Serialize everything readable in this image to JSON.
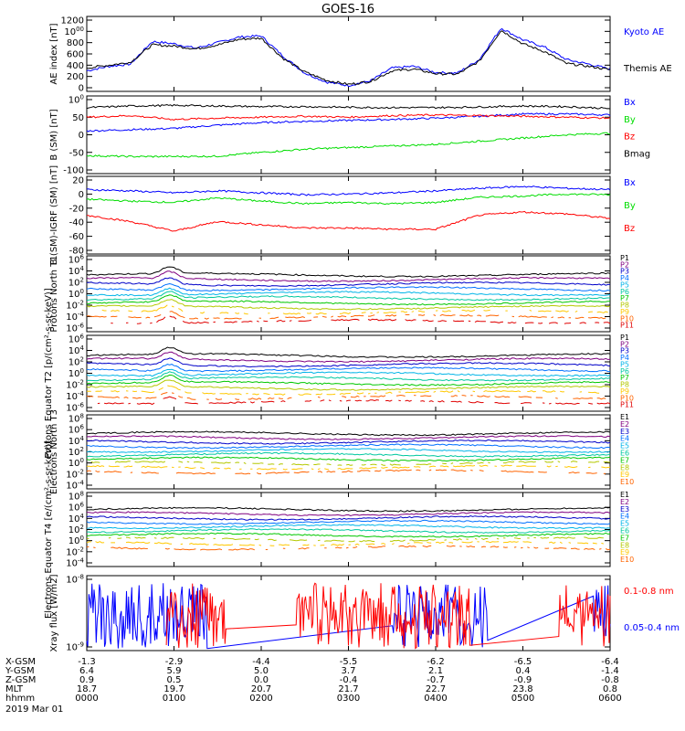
{
  "title": "GOES-16",
  "colors": {
    "black": "#000000",
    "blue": "#0000ff",
    "green": "#00dd00",
    "red": "#ff0000",
    "P": [
      "#000000",
      "#800080",
      "#0000c8",
      "#0070ff",
      "#00b4e8",
      "#00c8a0",
      "#00c800",
      "#b4c800",
      "#ffc800",
      "#ff6400",
      "#e00000"
    ],
    "E": [
      "#000000",
      "#800080",
      "#0000c8",
      "#0070ff",
      "#00b4e8",
      "#00c8a0",
      "#00c800",
      "#b4c800",
      "#ffc800",
      "#ff6400",
      "#e00000"
    ]
  },
  "chart_data": [
    {
      "type": "line",
      "id": "ae",
      "ylabel": "AE index [nT]",
      "yticks": [
        "0",
        "200",
        "400",
        "600",
        "800",
        "1000",
        "1200"
      ],
      "ylim": [
        0,
        1200
      ],
      "x": [
        0,
        0.25,
        0.5,
        0.75,
        1,
        1.25,
        1.5,
        1.75,
        2,
        2.25,
        2.5,
        2.75,
        3,
        3.25,
        3.5,
        3.75,
        4,
        4.25,
        4.5,
        4.75,
        5,
        5.25,
        5.5,
        5.75,
        6
      ],
      "series": [
        {
          "name": "Kyoto AE",
          "color": "#0000ff",
          "values": [
            300,
            380,
            420,
            820,
            780,
            700,
            800,
            900,
            920,
            560,
            260,
            100,
            40,
            120,
            350,
            380,
            270,
            260,
            500,
            1060,
            850,
            720,
            500,
            420,
            330
          ]
        },
        {
          "name": "Themis AE",
          "color": "#000000",
          "values": [
            350,
            400,
            450,
            760,
            740,
            690,
            760,
            860,
            880,
            520,
            280,
            130,
            60,
            110,
            300,
            330,
            250,
            240,
            470,
            1020,
            780,
            640,
            430,
            380,
            320
          ]
        }
      ]
    },
    {
      "type": "line",
      "id": "bgsm",
      "ylabel": "B (SM) [nT]",
      "yticks": [
        "-100",
        "-50",
        "0",
        "50",
        "100"
      ],
      "ylim": [
        -110,
        110
      ],
      "x": [
        0,
        0.5,
        1,
        1.5,
        2,
        2.5,
        3,
        3.5,
        4,
        4.5,
        5,
        5.5,
        6
      ],
      "series": [
        {
          "name": "Bx",
          "color": "#0000ff",
          "values": [
            12,
            16,
            20,
            30,
            38,
            42,
            45,
            48,
            52,
            58,
            65,
            65,
            62
          ]
        },
        {
          "name": "By",
          "color": "#00dd00",
          "values": [
            -65,
            -68,
            -68,
            -67,
            -55,
            -45,
            -40,
            -35,
            -30,
            -20,
            -10,
            0,
            5
          ]
        },
        {
          "name": "Bz",
          "color": "#ff0000",
          "values": [
            55,
            60,
            48,
            52,
            55,
            58,
            55,
            60,
            62,
            60,
            58,
            55,
            52
          ]
        },
        {
          "name": "Bmag",
          "color": "#000000",
          "values": [
            85,
            90,
            92,
            90,
            88,
            88,
            86,
            85,
            85,
            87,
            90,
            88,
            82
          ]
        }
      ]
    },
    {
      "type": "line",
      "id": "bigrf",
      "ylabel": "B (SM)-IGRF (SM) [nT]",
      "yticks": [
        "-80",
        "-60",
        "-40",
        "-20",
        "0",
        "20"
      ],
      "ylim": [
        -85,
        25
      ],
      "x": [
        0,
        0.5,
        1,
        1.5,
        2,
        2.5,
        3,
        3.5,
        4,
        4.5,
        5,
        5.5,
        6
      ],
      "series": [
        {
          "name": "Bx",
          "color": "#0000ff",
          "values": [
            10,
            8,
            5,
            8,
            5,
            2,
            3,
            5,
            8,
            12,
            15,
            12,
            10
          ]
        },
        {
          "name": "By",
          "color": "#00dd00",
          "values": [
            -5,
            -8,
            -10,
            -3,
            -8,
            -12,
            -10,
            -12,
            -10,
            -2,
            0,
            3,
            2
          ]
        },
        {
          "name": "Bz",
          "color": "#ff0000",
          "values": [
            -30,
            -40,
            -55,
            -40,
            -45,
            -50,
            -50,
            -52,
            -52,
            -30,
            -25,
            -28,
            -35
          ]
        }
      ]
    },
    {
      "type": "line",
      "id": "pn",
      "ylabel": "Protons North T1",
      "yscale": "log",
      "yticks": [
        "10-6",
        "10-4",
        "10-2",
        "100",
        "102",
        "104",
        "106"
      ],
      "ylim": [
        -6.5,
        6
      ],
      "legend": [
        "P1",
        "P2",
        "P3",
        "P4",
        "P5",
        "P6",
        "P7",
        "P8",
        "P9",
        "P10",
        "P11"
      ]
    },
    {
      "type": "line",
      "id": "pe",
      "ylabel": "Protons Equator T2 [p/(cm²-s-sr-keV)]",
      "yscale": "log",
      "yticks": [
        "10-6",
        "10-4",
        "10-2",
        "100",
        "102",
        "104",
        "106"
      ],
      "ylim": [
        -6.5,
        6
      ],
      "legend": [
        "P1",
        "P2",
        "P3",
        "P4",
        "P5",
        "P6",
        "P7",
        "P8",
        "P9",
        "P10",
        "P11"
      ]
    },
    {
      "type": "line",
      "id": "en",
      "ylabel": "Electrons North T3",
      "yscale": "log",
      "yticks": [
        "10-4",
        "10-2",
        "100",
        "102",
        "104",
        "106",
        "108"
      ],
      "ylim": [
        -4.5,
        8
      ],
      "legend": [
        "E1",
        "E2",
        "E3",
        "E4",
        "E5",
        "E6",
        "E7",
        "E8",
        "E9",
        "E10"
      ]
    },
    {
      "type": "line",
      "id": "ee",
      "ylabel": "Electrons Equator T4 [e/(cm²-s-sr-keV)]",
      "yscale": "log",
      "yticks": [
        "10-4",
        "10-2",
        "100",
        "102",
        "104",
        "106",
        "108"
      ],
      "ylim": [
        -4.5,
        8
      ],
      "legend": [
        "E1",
        "E2",
        "E3",
        "E4",
        "E5",
        "E6",
        "E7",
        "E8",
        "E9",
        "E10"
      ]
    },
    {
      "type": "line",
      "id": "xray",
      "ylabel": "Xray flux [W/m2]",
      "yscale": "log",
      "yticks": [
        "10-9",
        "10-8"
      ],
      "legend": [
        "0.1-0.8 nm",
        "0.05-0.4 nm"
      ]
    }
  ],
  "legends": {
    "ae": [
      {
        "label": "Kyoto AE",
        "color": "#0000ff"
      },
      {
        "label": "Themis AE",
        "color": "#000000"
      }
    ],
    "bgsm": [
      {
        "label": "Bx",
        "color": "#0000ff"
      },
      {
        "label": "By",
        "color": "#00dd00"
      },
      {
        "label": "Bz",
        "color": "#ff0000"
      },
      {
        "label": "Bmag",
        "color": "#000000"
      }
    ],
    "bigrf": [
      {
        "label": "Bx",
        "color": "#0000ff"
      },
      {
        "label": "By",
        "color": "#00dd00"
      },
      {
        "label": "Bz",
        "color": "#ff0000"
      }
    ],
    "xray": [
      {
        "label": "0.1-0.8 nm",
        "color": "#ff0000"
      },
      {
        "label": "0.05-0.4 nm",
        "color": "#0000ff"
      }
    ]
  },
  "orbit": {
    "rows": [
      {
        "label": "X-GSM",
        "values": [
          "-1.3",
          "-2.9",
          "-4.4",
          "-5.5",
          "-6.2",
          "-6.5",
          "-6.4"
        ]
      },
      {
        "label": "Y-GSM",
        "values": [
          "6.4",
          "5.9",
          "5.0",
          "3.7",
          "2.1",
          "0.4",
          "-1.4"
        ]
      },
      {
        "label": "Z-GSM",
        "values": [
          "0.9",
          "0.5",
          "0.0",
          "-0.4",
          "-0.7",
          "-0.9",
          "-0.8"
        ]
      },
      {
        "label": "MLT",
        "values": [
          "18.7",
          "19.7",
          "20.7",
          "21.7",
          "22.7",
          "23.8",
          "0.8"
        ]
      },
      {
        "label": "hhmm",
        "values": [
          "0000",
          "0100",
          "0200",
          "0300",
          "0400",
          "0500",
          "0600"
        ]
      }
    ],
    "date": "2019 Mar 01"
  }
}
